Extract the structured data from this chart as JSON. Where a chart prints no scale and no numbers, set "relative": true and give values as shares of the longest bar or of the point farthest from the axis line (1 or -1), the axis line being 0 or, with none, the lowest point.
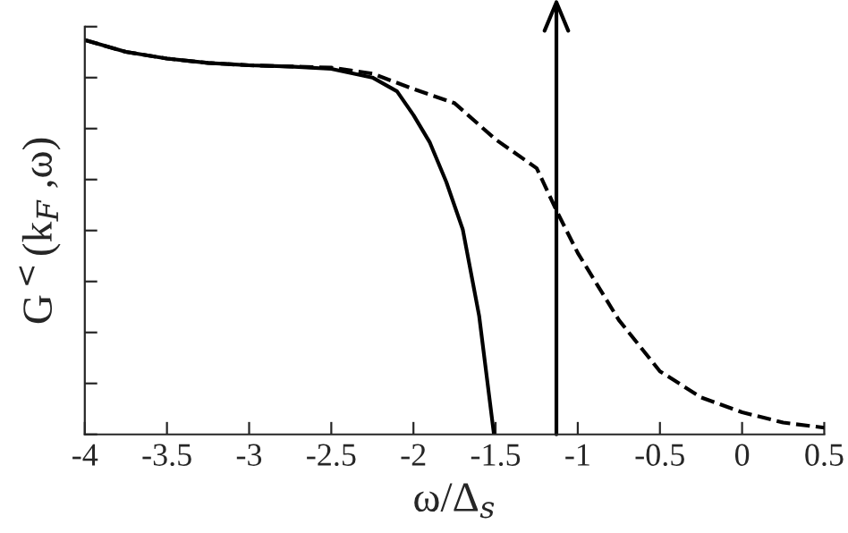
{
  "chart_data": {
    "type": "line",
    "relative": true,
    "xlabel": "ω/Δ$_{s}$",
    "ylabel": "G$^{<}$(k$_{F}$ ,ω)",
    "xlim": [
      -4,
      0.5
    ],
    "xticks": [
      -4,
      -3.5,
      -3,
      -2.5,
      -2,
      -1.5,
      -1,
      -0.5,
      0,
      0.5
    ],
    "tick_labels": "x",
    "series": [
      {
        "color": "#000000",
        "line_style": "solid",
        "x": [
          -4,
          -3.75,
          -3.5,
          -3.25,
          -3,
          -2.75,
          -2.5,
          -2.25,
          -2.1,
          -2,
          -1.9,
          -1.8,
          -1.7,
          -1.6,
          -1.51
        ],
        "values": [
          1.0,
          0.97,
          0.953,
          0.942,
          0.936,
          0.933,
          0.927,
          0.905,
          0.87,
          0.81,
          0.74,
          0.64,
          0.52,
          0.3,
          0.0
        ]
      },
      {
        "color": "#000000",
        "line_style": "dashed",
        "x": [
          -4,
          -3.75,
          -3.5,
          -3.25,
          -3,
          -2.75,
          -2.5,
          -2.25,
          -2,
          -1.75,
          -1.5,
          -1.25,
          -1.13,
          -1,
          -0.75,
          -0.5,
          -0.25,
          0,
          0.25,
          0.5
        ],
        "values": [
          1.0,
          0.97,
          0.953,
          0.942,
          0.936,
          0.933,
          0.93,
          0.915,
          0.876,
          0.84,
          0.748,
          0.675,
          0.568,
          0.46,
          0.29,
          0.16,
          0.094,
          0.056,
          0.03,
          0.017
        ]
      }
    ],
    "ref_lines": [
      {
        "axis": "x",
        "value": -1.13,
        "label": null
      }
    ]
  }
}
